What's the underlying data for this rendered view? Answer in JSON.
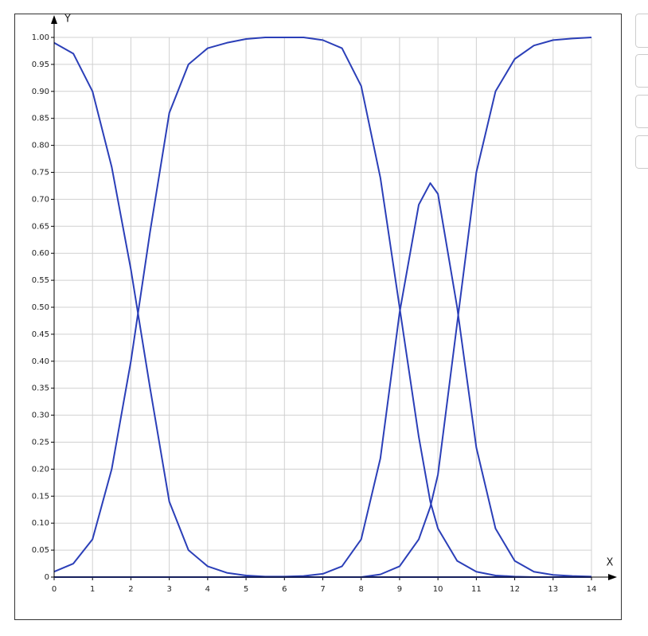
{
  "chart_data": {
    "type": "line",
    "x_label": "X",
    "y_label": "Y",
    "x": [
      0,
      0.5,
      1,
      1.5,
      2,
      2.5,
      3,
      3.5,
      4,
      4.5,
      5,
      5.5,
      6,
      6.5,
      7,
      7.5,
      8,
      8.5,
      9,
      9.5,
      9.8,
      10,
      10.5,
      11,
      11.5,
      12,
      12.5,
      13,
      13.5,
      14
    ],
    "series": [
      {
        "color": "#2b3fb8",
        "values": [
          0.99,
          0.97,
          0.9,
          0.76,
          0.57,
          0.35,
          0.14,
          0.05,
          0.02,
          0.008,
          0.003,
          0.001,
          0.001,
          0.002,
          0.006,
          0.02,
          0.07,
          0.22,
          0.49,
          0.69,
          0.73,
          0.71,
          0.5,
          0.24,
          0.09,
          0.03,
          0.01,
          0.004,
          0.002,
          0.001
        ]
      },
      {
        "color": "#2b3fb8",
        "values": [
          0.01,
          0.025,
          0.07,
          0.2,
          0.4,
          0.64,
          0.86,
          0.95,
          0.98,
          0.99,
          0.997,
          1,
          1,
          1,
          0.995,
          0.98,
          0.91,
          0.74,
          0.5,
          0.26,
          0.14,
          0.09,
          0.03,
          0.01,
          0.003,
          0.001,
          0,
          0,
          0,
          0
        ]
      },
      {
        "color": "#2b3fb8",
        "values": [
          0,
          0,
          0,
          0,
          0,
          0,
          0,
          0,
          0,
          0,
          0,
          0,
          0,
          0,
          0,
          0,
          0,
          0.005,
          0.02,
          0.07,
          0.13,
          0.19,
          0.47,
          0.75,
          0.9,
          0.96,
          0.985,
          0.995,
          0.998,
          1
        ]
      },
      {
        "color": "#2b3fb8",
        "values": [
          0,
          0,
          0,
          0,
          0,
          0,
          0,
          0,
          0,
          0,
          0,
          0,
          0,
          0,
          0,
          0,
          0,
          0,
          0,
          0,
          0,
          0,
          0,
          0,
          0,
          0,
          0,
          0,
          0,
          0
        ]
      }
    ],
    "xlim": [
      0,
      14
    ],
    "xticks": [
      0,
      1,
      2,
      3,
      4,
      5,
      6,
      7,
      8,
      9,
      10,
      11,
      12,
      13,
      14
    ],
    "ylim": [
      0,
      1
    ],
    "yticks": [
      0,
      0.05,
      {
        "value": 0.1,
        "label": "0.10"
      },
      0.15,
      {
        "value": 0.2,
        "label": "0.20"
      },
      0.25,
      {
        "value": 0.3,
        "label": "0.30"
      },
      0.35,
      {
        "value": 0.4,
        "label": "0.40"
      },
      0.45,
      {
        "value": 0.5,
        "label": "0.50"
      },
      0.55,
      {
        "value": 0.6,
        "label": "0.60"
      },
      0.65,
      {
        "value": 0.7,
        "label": "0.70"
      },
      0.75,
      {
        "value": 0.8,
        "label": "0.80"
      },
      0.85,
      {
        "value": 0.9,
        "label": "0.90"
      },
      0.95,
      {
        "value": 1,
        "label": "1.00"
      }
    ],
    "grid": true
  }
}
